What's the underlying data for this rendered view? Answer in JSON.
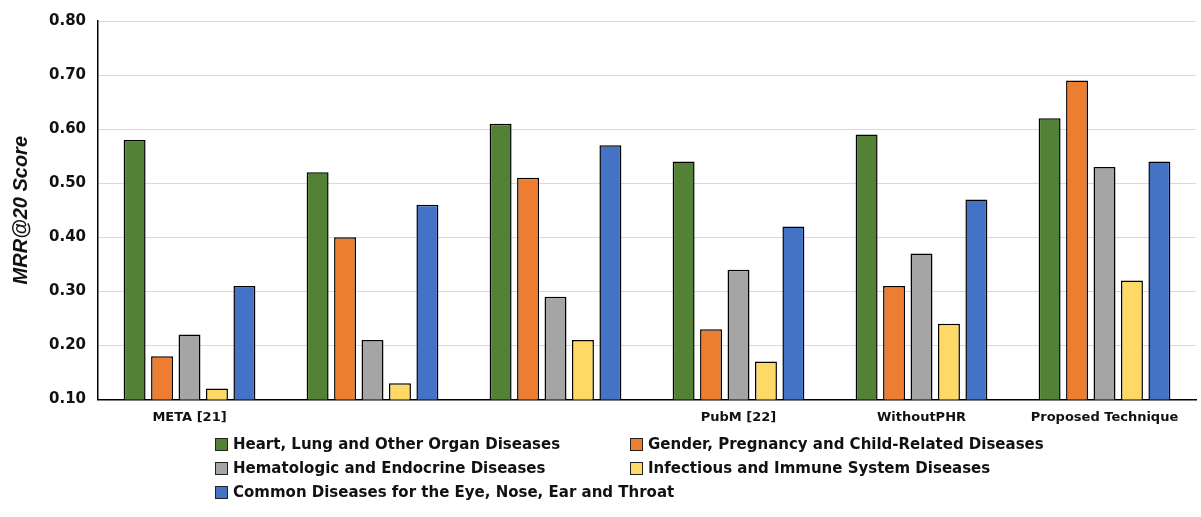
{
  "chart_data": {
    "type": "bar",
    "ylabel": "MRR@20 Score",
    "categories": [
      "META [21]",
      null,
      null,
      "PubM [22]",
      "WithoutPHR",
      "Proposed Technique"
    ],
    "series": [
      {
        "name": "Heart, Lung and Other Organ Diseases",
        "color": "#538135",
        "values": [
          0.58,
          0.52,
          0.61,
          0.54,
          0.59,
          0.62
        ]
      },
      {
        "name": "Gender, Pregnancy and Child-Related Diseases",
        "color": "#ed7d31",
        "values": [
          0.18,
          0.4,
          0.51,
          0.23,
          0.31,
          0.69
        ]
      },
      {
        "name": "Hematologic and Endocrine Diseases",
        "color": "#a5a5a5",
        "values": [
          0.22,
          0.21,
          0.29,
          0.34,
          0.37,
          0.53
        ]
      },
      {
        "name": "Infectious and Immune System Diseases",
        "color": "#ffd966",
        "values": [
          0.12,
          0.13,
          0.21,
          0.17,
          0.24,
          0.32
        ]
      },
      {
        "name": "Common Diseases for the Eye, Nose, Ear and Throat",
        "color": "#4472c4",
        "values": [
          0.31,
          0.46,
          0.57,
          0.42,
          0.47,
          0.54
        ]
      }
    ],
    "ylim": [
      0.1,
      0.8
    ],
    "yticks": [
      {
        "value": 0.1,
        "label": "0.10"
      },
      {
        "value": 0.2,
        "label": "0.20"
      },
      {
        "value": 0.3,
        "label": "0.30"
      },
      {
        "value": 0.4,
        "label": "0.40"
      },
      {
        "value": 0.5,
        "label": "0.50"
      },
      {
        "value": 0.6,
        "label": "0.60"
      },
      {
        "value": 0.7,
        "label": "0.70"
      },
      {
        "value": 0.8,
        "label": "0.80"
      }
    ],
    "grid": "y",
    "legend": "bottom"
  }
}
